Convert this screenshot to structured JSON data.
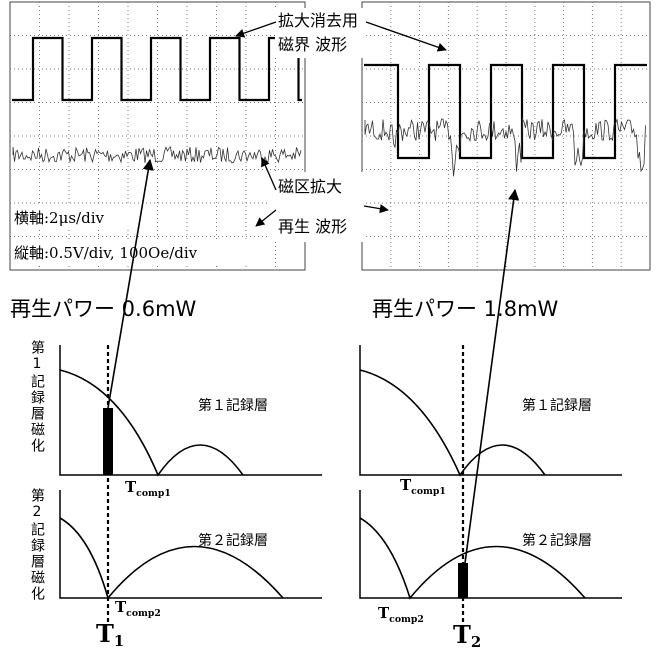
{
  "scope": {
    "annotation_field": [
      "拡大消去用",
      "磁界 波形"
    ],
    "annotation_readout": [
      "磁区拡大",
      "再生 波形"
    ],
    "horizontal_scale": "横軸:2μs/div",
    "vertical_scale": "縦軸:0.5V/div, 100Oe/div"
  },
  "y_axis_labels": [
    "第1記録層磁化",
    "第2記録層磁化"
  ],
  "panels": [
    {
      "power": "再生パワー 0.6mW",
      "layer1": "第１記録層",
      "layer2": "第２記録層",
      "tcomp1": {
        "base": "T",
        "sub": "comp1"
      },
      "tcomp2": {
        "base": "T",
        "sub": "comp2"
      },
      "t": {
        "base": "T",
        "sub": "1"
      }
    },
    {
      "power": "再生パワー 1.8mW",
      "layer1": "第１記録層",
      "layer2": "第２記録層",
      "tcomp1": {
        "base": "T",
        "sub": "comp1"
      },
      "tcomp2": {
        "base": "T",
        "sub": "comp2"
      },
      "t": {
        "base": "T",
        "sub": "2"
      }
    }
  ]
}
